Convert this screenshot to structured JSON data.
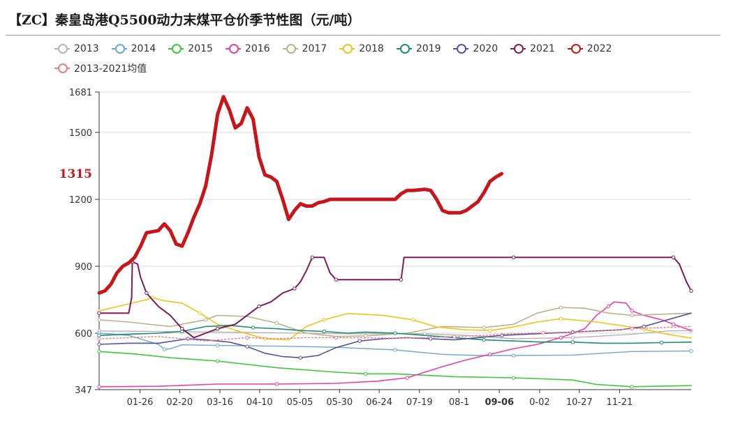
{
  "title": "【ZC】秦皇岛港Q5500动力末煤平仓价季节性图（元/吨）",
  "chart_data": {
    "type": "line",
    "title": "【ZC】秦皇岛港Q5500动力末煤平仓价季节性图（元/吨）",
    "ylim": [
      347,
      1681
    ],
    "yticks": [
      "1681",
      "1500",
      "1200",
      "900",
      "600",
      "347"
    ],
    "y_marker": {
      "label": "1315",
      "value": 1315,
      "color": "#c8151b"
    },
    "x_domain": [
      0,
      100
    ],
    "xticks": [
      {
        "label": "01-26",
        "x": 6.9
      },
      {
        "label": "02-20",
        "x": 13.6
      },
      {
        "label": "03-16",
        "x": 20.4
      },
      {
        "label": "04-10",
        "x": 27.1
      },
      {
        "label": "05-05",
        "x": 33.9
      },
      {
        "label": "05-30",
        "x": 40.6
      },
      {
        "label": "06-24",
        "x": 47.3
      },
      {
        "label": "07-19",
        "x": 54.1
      },
      {
        "label": "08-1",
        "x": 60.8
      },
      {
        "label": "09-06",
        "x": 67.6,
        "highlight": true
      },
      {
        "label": "0-02",
        "x": 74.4
      },
      {
        "label": "10-27",
        "x": 81.1
      },
      {
        "label": "11-21",
        "x": 87.9
      }
    ],
    "series": [
      {
        "name": "2013",
        "color": "#b4b4b4",
        "width": 1.4,
        "points": [
          [
            0,
            610
          ],
          [
            20,
            605
          ],
          [
            40,
            598
          ],
          [
            55,
            597
          ],
          [
            62,
            590
          ],
          [
            70,
            575
          ],
          [
            80,
            580
          ],
          [
            90,
            595
          ],
          [
            96,
            610
          ],
          [
            100,
            612
          ]
        ]
      },
      {
        "name": "2014",
        "color": "#6aa6d6",
        "width": 1.4,
        "points": [
          [
            0,
            600
          ],
          [
            5,
            590
          ],
          [
            10,
            550
          ],
          [
            11,
            528
          ],
          [
            12,
            530
          ],
          [
            14,
            548
          ],
          [
            20,
            545
          ],
          [
            30,
            542
          ],
          [
            40,
            537
          ],
          [
            50,
            525
          ],
          [
            58,
            505
          ],
          [
            64,
            500
          ],
          [
            70,
            500
          ],
          [
            80,
            502
          ],
          [
            90,
            518
          ],
          [
            100,
            520
          ]
        ]
      },
      {
        "name": "2015",
        "color": "#3cc83c",
        "width": 1.6,
        "points": [
          [
            0,
            518
          ],
          [
            6,
            507
          ],
          [
            12,
            490
          ],
          [
            20,
            475
          ],
          [
            30,
            445
          ],
          [
            40,
            425
          ],
          [
            45,
            418
          ],
          [
            50,
            418
          ],
          [
            60,
            405
          ],
          [
            70,
            400
          ],
          [
            80,
            390
          ],
          [
            84,
            370
          ],
          [
            90,
            360
          ],
          [
            100,
            365
          ]
        ]
      },
      {
        "name": "2016",
        "color": "#e83ea6",
        "width": 1.6,
        "points": [
          [
            0,
            360
          ],
          [
            10,
            362
          ],
          [
            20,
            372
          ],
          [
            30,
            372
          ],
          [
            40,
            375
          ],
          [
            47,
            385
          ],
          [
            52,
            400
          ],
          [
            58,
            450
          ],
          [
            62,
            480
          ],
          [
            66,
            505
          ],
          [
            70,
            530
          ],
          [
            74,
            550
          ],
          [
            78,
            580
          ],
          [
            82,
            620
          ],
          [
            84,
            680
          ],
          [
            86,
            720
          ],
          [
            87,
            740
          ],
          [
            89,
            735
          ],
          [
            90,
            700
          ],
          [
            92,
            680
          ],
          [
            95,
            660
          ],
          [
            97,
            640
          ],
          [
            100,
            612
          ]
        ]
      },
      {
        "name": "2017",
        "color": "#bdb08a",
        "width": 1.6,
        "points": [
          [
            0,
            660
          ],
          [
            5,
            650
          ],
          [
            12,
            630
          ],
          [
            18,
            660
          ],
          [
            20,
            680
          ],
          [
            25,
            675
          ],
          [
            30,
            645
          ],
          [
            35,
            600
          ],
          [
            40,
            585
          ],
          [
            45,
            588
          ],
          [
            52,
            600
          ],
          [
            58,
            630
          ],
          [
            65,
            625
          ],
          [
            70,
            640
          ],
          [
            74,
            690
          ],
          [
            78,
            715
          ],
          [
            82,
            712
          ],
          [
            86,
            690
          ],
          [
            90,
            680
          ],
          [
            95,
            685
          ],
          [
            100,
            690
          ]
        ]
      },
      {
        "name": "2018",
        "color": "#f0c417",
        "width": 1.6,
        "points": [
          [
            0,
            700
          ],
          [
            4,
            725
          ],
          [
            8,
            750
          ],
          [
            9,
            760
          ],
          [
            11,
            745
          ],
          [
            14,
            735
          ],
          [
            17,
            690
          ],
          [
            20,
            640
          ],
          [
            24,
            605
          ],
          [
            28,
            575
          ],
          [
            32,
            570
          ],
          [
            35,
            630
          ],
          [
            38,
            660
          ],
          [
            42,
            688
          ],
          [
            48,
            680
          ],
          [
            53,
            660
          ],
          [
            57,
            628
          ],
          [
            62,
            615
          ],
          [
            66,
            612
          ],
          [
            70,
            628
          ],
          [
            74,
            650
          ],
          [
            78,
            665
          ],
          [
            84,
            650
          ],
          [
            88,
            635
          ],
          [
            92,
            618
          ],
          [
            96,
            595
          ],
          [
            100,
            578
          ]
        ]
      },
      {
        "name": "2019",
        "color": "#1e8c78",
        "width": 1.6,
        "points": [
          [
            0,
            590
          ],
          [
            5,
            595
          ],
          [
            10,
            600
          ],
          [
            14,
            608
          ],
          [
            18,
            630
          ],
          [
            22,
            635
          ],
          [
            26,
            625
          ],
          [
            30,
            620
          ],
          [
            34,
            612
          ],
          [
            38,
            608
          ],
          [
            42,
            600
          ],
          [
            45,
            605
          ],
          [
            50,
            600
          ],
          [
            55,
            590
          ],
          [
            60,
            580
          ],
          [
            65,
            570
          ],
          [
            70,
            565
          ],
          [
            75,
            560
          ],
          [
            80,
            560
          ],
          [
            85,
            555
          ],
          [
            90,
            555
          ],
          [
            95,
            558
          ],
          [
            100,
            560
          ]
        ]
      },
      {
        "name": "2020",
        "color": "#57509e",
        "width": 1.6,
        "points": [
          [
            0,
            550
          ],
          [
            5,
            555
          ],
          [
            10,
            555
          ],
          [
            15,
            575
          ],
          [
            18,
            570
          ],
          [
            22,
            560
          ],
          [
            25,
            540
          ],
          [
            28,
            510
          ],
          [
            31,
            495
          ],
          [
            34,
            490
          ],
          [
            37,
            500
          ],
          [
            40,
            535
          ],
          [
            44,
            565
          ],
          [
            48,
            575
          ],
          [
            52,
            580
          ],
          [
            56,
            575
          ],
          [
            60,
            570
          ],
          [
            64,
            580
          ],
          [
            68,
            590
          ],
          [
            72,
            595
          ],
          [
            76,
            600
          ],
          [
            80,
            605
          ],
          [
            84,
            610
          ],
          [
            88,
            615
          ],
          [
            92,
            630
          ],
          [
            96,
            660
          ],
          [
            100,
            690
          ]
        ]
      },
      {
        "name": "2021",
        "color": "#7a1e5a",
        "width": 2.0,
        "points": [
          [
            0,
            690
          ],
          [
            5,
            690
          ],
          [
            5.5,
            760
          ],
          [
            5.6,
            920
          ],
          [
            6.5,
            910
          ],
          [
            7,
            850
          ],
          [
            8,
            780
          ],
          [
            10,
            720
          ],
          [
            12,
            680
          ],
          [
            14,
            620
          ],
          [
            16,
            580
          ],
          [
            18,
            600
          ],
          [
            20,
            620
          ],
          [
            23,
            640
          ],
          [
            25,
            680
          ],
          [
            27,
            720
          ],
          [
            29,
            740
          ],
          [
            31,
            780
          ],
          [
            33,
            800
          ],
          [
            34,
            830
          ],
          [
            35,
            880
          ],
          [
            36,
            940
          ],
          [
            38,
            940
          ],
          [
            39,
            870
          ],
          [
            40,
            840
          ],
          [
            45,
            840
          ],
          [
            50,
            840
          ],
          [
            51,
            840
          ],
          [
            51.5,
            940
          ],
          [
            60,
            940
          ],
          [
            70,
            940
          ],
          [
            80,
            940
          ],
          [
            90,
            940
          ],
          [
            97,
            940
          ],
          [
            98,
            910
          ],
          [
            99.2,
            830
          ],
          [
            100,
            790
          ]
        ]
      },
      {
        "name": "2022",
        "color": "#c8151b",
        "width": 5.0,
        "points": [
          [
            0,
            780
          ],
          [
            1,
            790
          ],
          [
            2,
            820
          ],
          [
            3,
            870
          ],
          [
            4,
            900
          ],
          [
            5,
            915
          ],
          [
            6,
            940
          ],
          [
            7,
            990
          ],
          [
            8,
            1050
          ],
          [
            9,
            1055
          ],
          [
            10,
            1060
          ],
          [
            11,
            1090
          ],
          [
            12,
            1060
          ],
          [
            13,
            1000
          ],
          [
            14,
            990
          ],
          [
            15,
            1050
          ],
          [
            16,
            1120
          ],
          [
            17,
            1180
          ],
          [
            18,
            1260
          ],
          [
            19,
            1400
          ],
          [
            20,
            1580
          ],
          [
            21,
            1660
          ],
          [
            22,
            1600
          ],
          [
            23,
            1520
          ],
          [
            24,
            1540
          ],
          [
            25,
            1610
          ],
          [
            26,
            1560
          ],
          [
            27,
            1390
          ],
          [
            28,
            1310
          ],
          [
            29,
            1300
          ],
          [
            30,
            1280
          ],
          [
            31,
            1200
          ],
          [
            32,
            1110
          ],
          [
            33,
            1150
          ],
          [
            34,
            1180
          ],
          [
            35,
            1170
          ],
          [
            36,
            1170
          ],
          [
            37,
            1185
          ],
          [
            38,
            1190
          ],
          [
            39,
            1200
          ],
          [
            45,
            1200
          ],
          [
            50,
            1200
          ],
          [
            51,
            1225
          ],
          [
            52,
            1240
          ],
          [
            53,
            1240
          ],
          [
            55,
            1245
          ],
          [
            56,
            1240
          ],
          [
            57,
            1200
          ],
          [
            58,
            1150
          ],
          [
            59,
            1140
          ],
          [
            60,
            1140
          ],
          [
            61,
            1140
          ],
          [
            62,
            1150
          ],
          [
            63,
            1170
          ],
          [
            64,
            1190
          ],
          [
            65,
            1230
          ],
          [
            66,
            1280
          ],
          [
            67,
            1300
          ],
          [
            68,
            1315
          ]
        ]
      },
      {
        "name": "2013-2021均值",
        "color": "#f07a82",
        "width": 1.4,
        "dashed": true,
        "points": [
          [
            0,
            575
          ],
          [
            10,
            585
          ],
          [
            18,
            565
          ],
          [
            25,
            580
          ],
          [
            30,
            575
          ],
          [
            35,
            580
          ],
          [
            40,
            580
          ],
          [
            50,
            578
          ],
          [
            55,
            580
          ],
          [
            60,
            585
          ],
          [
            65,
            590
          ],
          [
            70,
            598
          ],
          [
            75,
            602
          ],
          [
            80,
            605
          ],
          [
            85,
            610
          ],
          [
            90,
            620
          ],
          [
            95,
            625
          ],
          [
            100,
            630
          ]
        ]
      }
    ]
  }
}
